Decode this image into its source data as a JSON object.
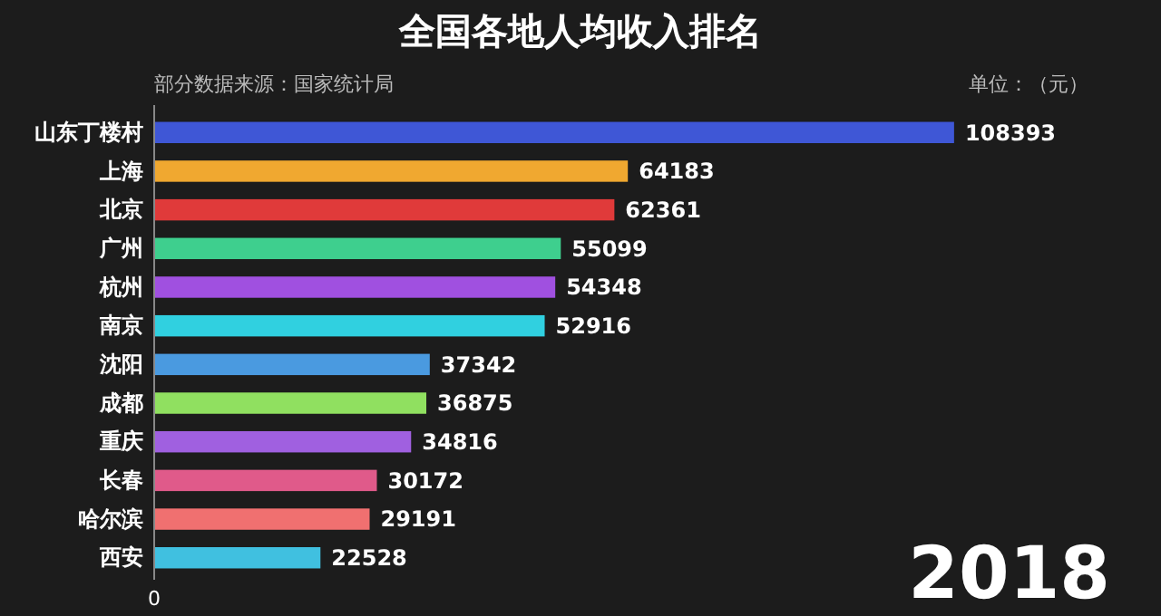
{
  "chart_data": {
    "type": "bar",
    "orientation": "horizontal",
    "title": "全国各地人均收入排名",
    "annotations": [
      "部分数据来源：国家统计局",
      "单位：（元）",
      "2018",
      "0"
    ],
    "categories": [
      "山东丁楼村",
      "上海",
      "北京",
      "广州",
      "杭州",
      "南京",
      "沈阳",
      "成都",
      "重庆",
      "长春",
      "哈尔滨",
      "西安"
    ],
    "values": [
      108393,
      64183,
      62361,
      55099,
      54348,
      52916,
      37342,
      36875,
      34816,
      30172,
      29191,
      22528
    ],
    "colors": [
      "#3f57d6",
      "#f0a830",
      "#e03a3a",
      "#3ecf8e",
      "#a050e0",
      "#30d0e0",
      "#4a9ae0",
      "#90e060",
      "#a060e0",
      "#e05a8a",
      "#f07070",
      "#40c0e0"
    ],
    "data_labels": true
  }
}
